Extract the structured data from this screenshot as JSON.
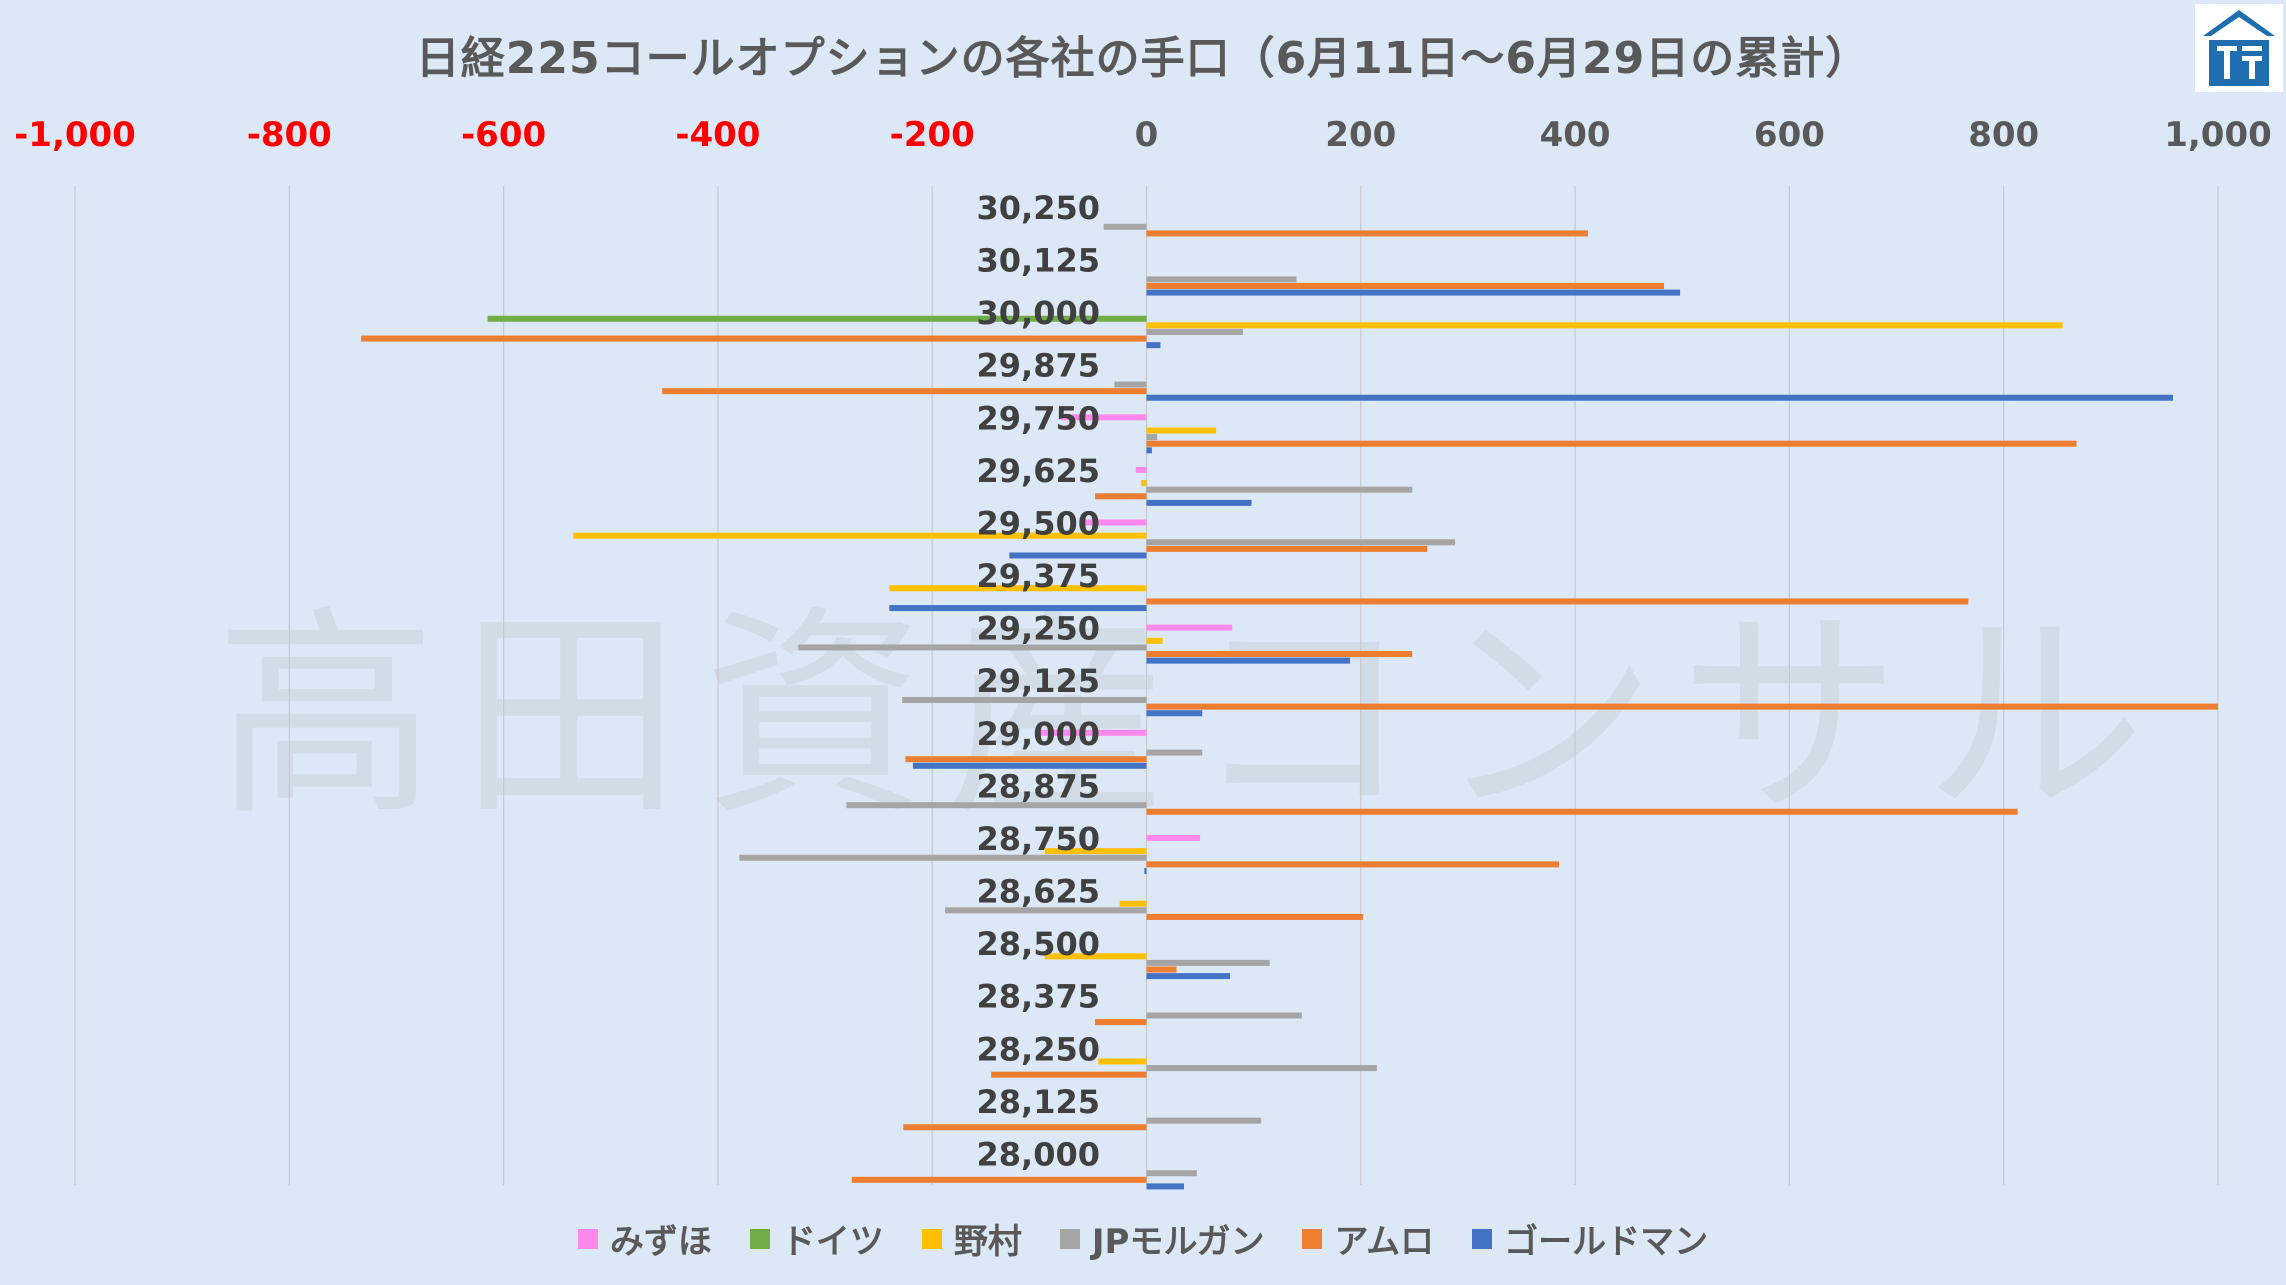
{
  "chart_data": {
    "type": "bar",
    "orientation": "horizontal",
    "title": "日経225コールオプションの各社の手口（6月11日～6月29日の累計）",
    "watermark": "高田資産コンサル",
    "categories": [
      "30,250",
      "30,125",
      "30,000",
      "29,875",
      "29,750",
      "29,625",
      "29,500",
      "29,375",
      "29,250",
      "29,125",
      "29,000",
      "28,875",
      "28,750",
      "28,625",
      "28,500",
      "28,375",
      "28,250",
      "28,125",
      "28,000"
    ],
    "x_ticks": [
      "-1,000",
      "-800",
      "-600",
      "-400",
      "-200",
      "0",
      "200",
      "400",
      "600",
      "800",
      "1,000"
    ],
    "xlim": [
      -1000,
      1000
    ],
    "grid": true,
    "legend_position": "bottom",
    "series": [
      {
        "name": "みずほ",
        "color": "#ff88ee",
        "values": [
          0,
          0,
          0,
          0,
          -80,
          -10,
          -60,
          0,
          80,
          0,
          -100,
          0,
          50,
          0,
          0,
          0,
          0,
          0,
          0
        ]
      },
      {
        "name": "ドイツ",
        "color": "#70ad47",
        "values": [
          0,
          0,
          -615,
          0,
          0,
          0,
          0,
          0,
          0,
          0,
          0,
          0,
          0,
          0,
          0,
          0,
          0,
          0,
          0
        ]
      },
      {
        "name": "野村",
        "color": "#ffc000",
        "values": [
          0,
          0,
          855,
          0,
          65,
          -5,
          -535,
          -240,
          15,
          0,
          0,
          0,
          -95,
          -25,
          -95,
          0,
          -45,
          0,
          0
        ]
      },
      {
        "name": "JPモルガン",
        "color": "#a5a5a5",
        "values": [
          -40,
          140,
          90,
          -30,
          10,
          248,
          288,
          0,
          -325,
          -228,
          52,
          -280,
          -380,
          -188,
          115,
          145,
          215,
          107,
          47
        ]
      },
      {
        "name": "アムロ",
        "color": "#ed7d31",
        "values": [
          412,
          483,
          -733,
          -452,
          868,
          -48,
          262,
          767,
          248,
          1000,
          -225,
          813,
          385,
          202,
          28,
          -48,
          -145,
          -227,
          -275
        ]
      },
      {
        "name": "ゴールドマン",
        "color": "#4472c4",
        "values": [
          0,
          498,
          13,
          958,
          5,
          98,
          -128,
          -240,
          190,
          52,
          -218,
          0,
          -2,
          0,
          78,
          0,
          0,
          0,
          35
        ]
      }
    ]
  }
}
